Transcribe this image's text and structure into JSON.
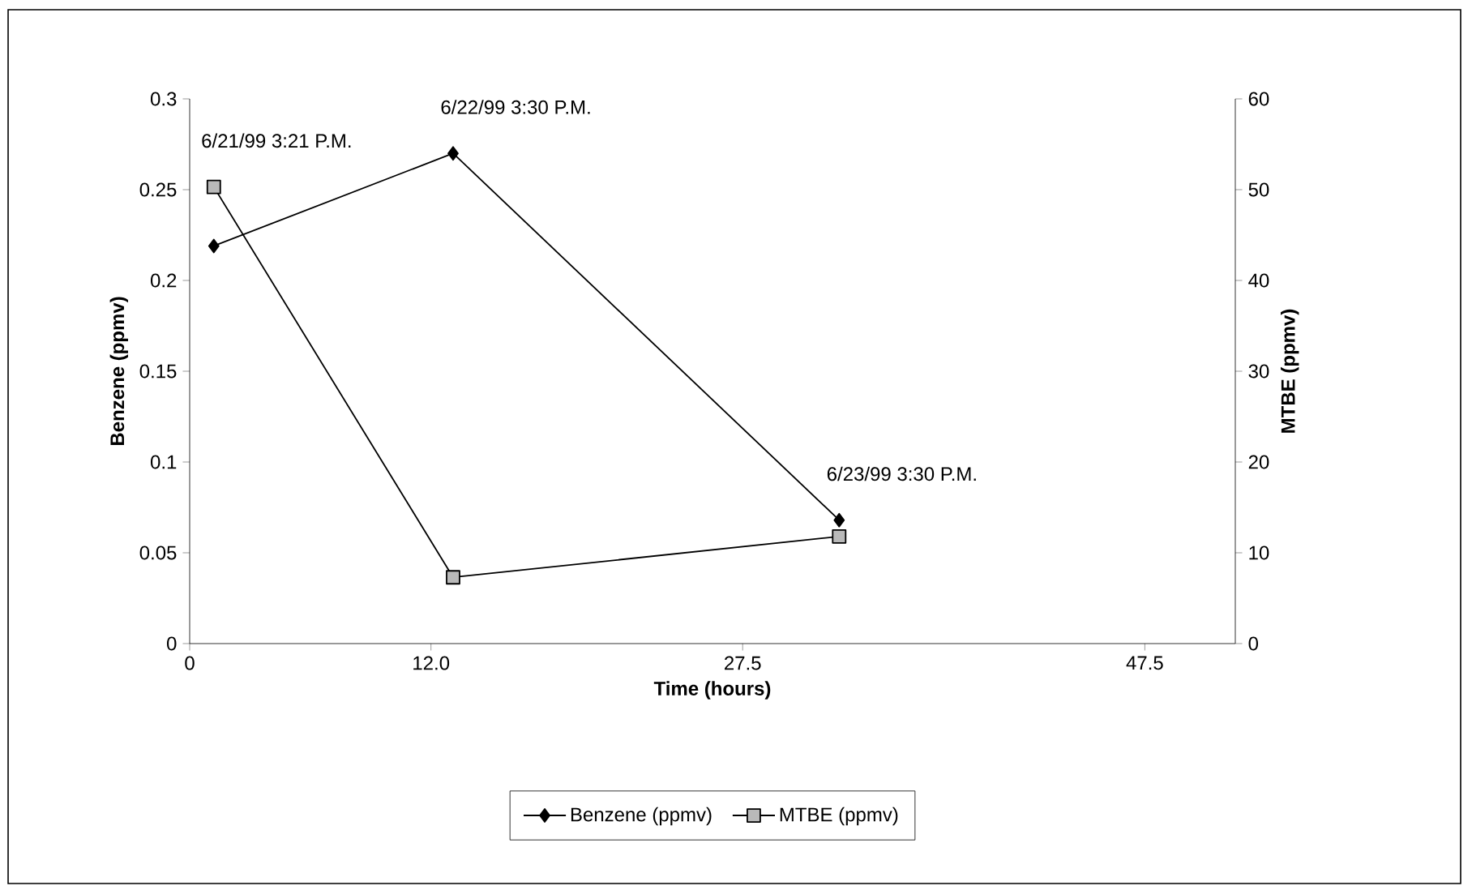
{
  "chart_data": {
    "type": "line",
    "x": [
      1.2,
      13.1,
      32.3
    ],
    "xlim": [
      0,
      52
    ],
    "xticks": [
      0,
      {
        "value": 12,
        "label": "12.0"
      },
      27.5,
      47.5
    ],
    "ylim": [
      0,
      0.3
    ],
    "yticks": [
      0,
      0.05,
      0.1,
      0.15,
      0.2,
      0.25,
      0.3
    ],
    "y2lim": [
      0,
      60
    ],
    "y2ticks": [
      0,
      10,
      20,
      30,
      40,
      50,
      60
    ],
    "xlabel": "Time (hours)",
    "ylabel": "Benzene (ppmv)",
    "y2label": "MTBE (ppmv)",
    "series": [
      {
        "name": "Benzene (ppmv)",
        "color": "#000000",
        "marker": "diamond",
        "values": [
          0.219,
          0.27,
          0.068
        ]
      },
      {
        "name": "MTBE (ppmv)",
        "color": "#000000",
        "marker": "square",
        "axis": "y2",
        "values": [
          50.3,
          7.3,
          11.8
        ]
      }
    ],
    "legend": "bottom",
    "annotations": [
      "6/21/99  3:21 P.M.",
      "6/22/99  3:30 P.M.",
      "6/23/99  3:30 P.M."
    ]
  }
}
